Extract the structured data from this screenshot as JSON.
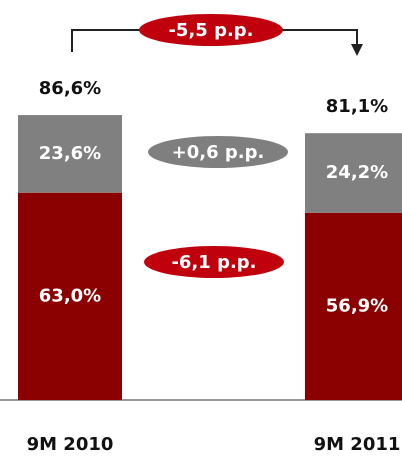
{
  "chart_data": {
    "type": "stacked-bar",
    "categories": [
      "9M 2010",
      "9M 2011"
    ],
    "series": [
      {
        "color": "#8b0000",
        "values": [
          63.0,
          56.9
        ],
        "value_labels": [
          "63,0%",
          "56,9%"
        ]
      },
      {
        "color": "#808080",
        "values": [
          23.6,
          24.2
        ],
        "value_labels": [
          "23,6%",
          "24,2%"
        ]
      }
    ],
    "totals": [
      86.6,
      81.1
    ],
    "total_labels": [
      "86,6%",
      "81,1%"
    ],
    "annotations": [
      "-5,5 p.p.",
      "+0,6 p.p.",
      "-6,1 p.p."
    ]
  }
}
